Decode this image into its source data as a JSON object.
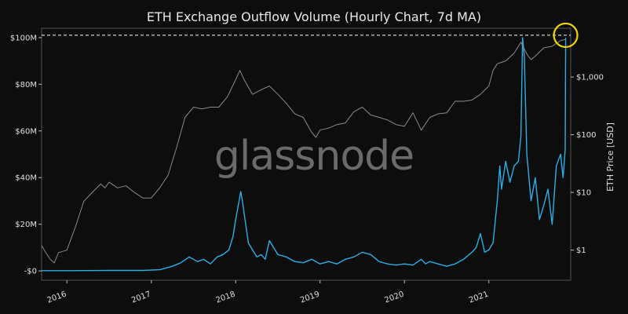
{
  "chart_data": {
    "type": "line",
    "title": "ETH Exchange Outflow Volume (Hourly Chart, 7d MA)",
    "watermark": "glassnode",
    "xlabel": "",
    "ylabel_left": "",
    "ylabel_right": "ETH Price [USD]",
    "x_ticks": [
      "2016",
      "2017",
      "2018",
      "2019",
      "2020",
      "2021"
    ],
    "xlim": [
      2015.7,
      2021.97
    ],
    "y_left_ticks": [
      {
        "value": 0,
        "label": "-$0"
      },
      {
        "value": 20,
        "label": "$20M"
      },
      {
        "value": 40,
        "label": "$40M"
      },
      {
        "value": 60,
        "label": "$60M"
      },
      {
        "value": 80,
        "label": "$80M"
      },
      {
        "value": 100,
        "label": "$100M"
      }
    ],
    "y_left_lim": [
      -4,
      104
    ],
    "y_right_scale": "log",
    "y_right_ticks": [
      {
        "value": 1,
        "label": "$1"
      },
      {
        "value": 10,
        "label": "$10"
      },
      {
        "value": 100,
        "label": "$100"
      },
      {
        "value": 1000,
        "label": "$1,000"
      }
    ],
    "y_right_lim": [
      0.3,
      7000
    ],
    "reference_line": {
      "axis": "left",
      "value": 101,
      "style": "dashed",
      "color": "#ffffff"
    },
    "highlight_marker": {
      "shape": "circle",
      "color": "#f2d600",
      "x": 2021.91,
      "y_left": 101
    },
    "grid": false,
    "legend": "none",
    "colors": {
      "background": "#0d0d0d",
      "outflow": "#29aee6",
      "price": "#8a8a8a",
      "axes": "#555555"
    },
    "series": [
      {
        "name": "",
        "axis": "left",
        "color": "#29aee6",
        "points": [
          [
            2015.7,
            0.1
          ],
          [
            2016.0,
            0.1
          ],
          [
            2016.5,
            0.2
          ],
          [
            2016.9,
            0.2
          ],
          [
            2017.1,
            0.5
          ],
          [
            2017.25,
            2
          ],
          [
            2017.35,
            3.5
          ],
          [
            2017.45,
            6
          ],
          [
            2017.5,
            5
          ],
          [
            2017.55,
            4
          ],
          [
            2017.62,
            5
          ],
          [
            2017.7,
            3
          ],
          [
            2017.78,
            6
          ],
          [
            2017.85,
            7
          ],
          [
            2017.92,
            9
          ],
          [
            2017.97,
            15
          ],
          [
            2018.0,
            22
          ],
          [
            2018.03,
            28
          ],
          [
            2018.06,
            34
          ],
          [
            2018.08,
            30
          ],
          [
            2018.11,
            22
          ],
          [
            2018.15,
            12
          ],
          [
            2018.2,
            9
          ],
          [
            2018.25,
            6
          ],
          [
            2018.3,
            7
          ],
          [
            2018.35,
            5
          ],
          [
            2018.4,
            13
          ],
          [
            2018.45,
            10
          ],
          [
            2018.5,
            7
          ],
          [
            2018.6,
            6
          ],
          [
            2018.7,
            4
          ],
          [
            2018.8,
            3.5
          ],
          [
            2018.9,
            5
          ],
          [
            2019.0,
            3
          ],
          [
            2019.1,
            4
          ],
          [
            2019.2,
            3
          ],
          [
            2019.3,
            5
          ],
          [
            2019.4,
            6
          ],
          [
            2019.5,
            8
          ],
          [
            2019.6,
            7
          ],
          [
            2019.7,
            4
          ],
          [
            2019.8,
            3
          ],
          [
            2019.9,
            2.5
          ],
          [
            2020.0,
            3
          ],
          [
            2020.1,
            2.5
          ],
          [
            2020.2,
            5
          ],
          [
            2020.25,
            3
          ],
          [
            2020.3,
            4
          ],
          [
            2020.4,
            3
          ],
          [
            2020.5,
            2
          ],
          [
            2020.6,
            3
          ],
          [
            2020.7,
            5
          ],
          [
            2020.8,
            8
          ],
          [
            2020.85,
            10
          ],
          [
            2020.9,
            16
          ],
          [
            2020.95,
            8
          ],
          [
            2021.0,
            9
          ],
          [
            2021.05,
            12
          ],
          [
            2021.1,
            30
          ],
          [
            2021.13,
            45
          ],
          [
            2021.15,
            35
          ],
          [
            2021.2,
            47
          ],
          [
            2021.25,
            38
          ],
          [
            2021.3,
            45
          ],
          [
            2021.35,
            47
          ],
          [
            2021.38,
            58
          ],
          [
            2021.4,
            100
          ],
          [
            2021.42,
            92
          ],
          [
            2021.45,
            50
          ],
          [
            2021.5,
            30
          ],
          [
            2021.55,
            40
          ],
          [
            2021.6,
            22
          ],
          [
            2021.65,
            28
          ],
          [
            2021.7,
            35
          ],
          [
            2021.75,
            20
          ],
          [
            2021.8,
            45
          ],
          [
            2021.85,
            50
          ],
          [
            2021.88,
            40
          ],
          [
            2021.905,
            52
          ],
          [
            2021.91,
            100
          ]
        ]
      },
      {
        "name": "",
        "axis": "right",
        "color": "#8a8a8a",
        "points": [
          [
            2015.7,
            1.2
          ],
          [
            2015.75,
            0.9
          ],
          [
            2015.8,
            0.7
          ],
          [
            2015.85,
            0.6
          ],
          [
            2015.9,
            0.9
          ],
          [
            2015.95,
            0.95
          ],
          [
            2016.0,
            1.0
          ],
          [
            2016.1,
            2.5
          ],
          [
            2016.2,
            7
          ],
          [
            2016.3,
            10
          ],
          [
            2016.4,
            14
          ],
          [
            2016.45,
            12
          ],
          [
            2016.5,
            15
          ],
          [
            2016.6,
            12
          ],
          [
            2016.7,
            13
          ],
          [
            2016.8,
            10
          ],
          [
            2016.9,
            8
          ],
          [
            2017.0,
            8
          ],
          [
            2017.1,
            12
          ],
          [
            2017.2,
            20
          ],
          [
            2017.3,
            60
          ],
          [
            2017.4,
            200
          ],
          [
            2017.5,
            300
          ],
          [
            2017.6,
            280
          ],
          [
            2017.7,
            300
          ],
          [
            2017.8,
            300
          ],
          [
            2017.9,
            450
          ],
          [
            2018.0,
            900
          ],
          [
            2018.05,
            1300
          ],
          [
            2018.1,
            900
          ],
          [
            2018.2,
            500
          ],
          [
            2018.3,
            600
          ],
          [
            2018.4,
            700
          ],
          [
            2018.5,
            500
          ],
          [
            2018.6,
            350
          ],
          [
            2018.7,
            230
          ],
          [
            2018.8,
            200
          ],
          [
            2018.9,
            110
          ],
          [
            2018.95,
            90
          ],
          [
            2019.0,
            120
          ],
          [
            2019.1,
            130
          ],
          [
            2019.2,
            150
          ],
          [
            2019.3,
            160
          ],
          [
            2019.4,
            250
          ],
          [
            2019.5,
            300
          ],
          [
            2019.6,
            220
          ],
          [
            2019.7,
            200
          ],
          [
            2019.8,
            180
          ],
          [
            2019.9,
            150
          ],
          [
            2020.0,
            140
          ],
          [
            2020.1,
            240
          ],
          [
            2020.2,
            120
          ],
          [
            2020.3,
            200
          ],
          [
            2020.4,
            230
          ],
          [
            2020.5,
            240
          ],
          [
            2020.6,
            380
          ],
          [
            2020.7,
            380
          ],
          [
            2020.8,
            400
          ],
          [
            2020.9,
            500
          ],
          [
            2021.0,
            700
          ],
          [
            2021.05,
            1300
          ],
          [
            2021.1,
            1700
          ],
          [
            2021.2,
            1900
          ],
          [
            2021.3,
            2600
          ],
          [
            2021.38,
            4000
          ],
          [
            2021.45,
            2500
          ],
          [
            2021.5,
            2000
          ],
          [
            2021.55,
            2300
          ],
          [
            2021.65,
            3200
          ],
          [
            2021.75,
            3400
          ],
          [
            2021.85,
            4300
          ],
          [
            2021.91,
            4500
          ]
        ]
      }
    ]
  }
}
